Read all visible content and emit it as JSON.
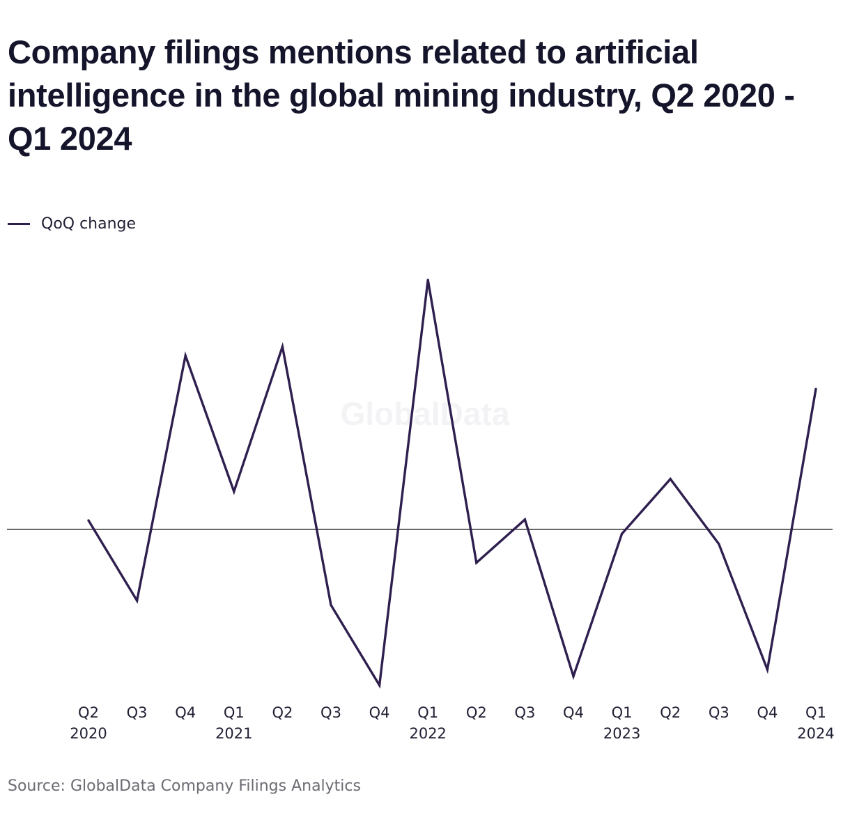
{
  "title": "Company filings mentions related to artificial intelligence in the global mining industry, Q2 2020 - Q1 2024",
  "legend": {
    "label": "QoQ change"
  },
  "watermark": "GlobalData",
  "source": "Source: GlobalData Company Filings Analytics",
  "colors": {
    "line": "#2f1f4f",
    "zero_line": "#1a1a1a",
    "watermark": "#f3f3f5",
    "source_text": "#6b6b73"
  },
  "chart_data": {
    "type": "line",
    "categories": [
      {
        "quarter": "Q2",
        "year": "2020"
      },
      {
        "quarter": "Q3",
        "year": ""
      },
      {
        "quarter": "Q4",
        "year": ""
      },
      {
        "quarter": "Q1",
        "year": "2021"
      },
      {
        "quarter": "Q2",
        "year": ""
      },
      {
        "quarter": "Q3",
        "year": ""
      },
      {
        "quarter": "Q4",
        "year": ""
      },
      {
        "quarter": "Q1",
        "year": "2022"
      },
      {
        "quarter": "Q2",
        "year": ""
      },
      {
        "quarter": "Q3",
        "year": ""
      },
      {
        "quarter": "Q4",
        "year": ""
      },
      {
        "quarter": "Q1",
        "year": "2023"
      },
      {
        "quarter": "Q2",
        "year": ""
      },
      {
        "quarter": "Q3",
        "year": ""
      },
      {
        "quarter": "Q4",
        "year": ""
      },
      {
        "quarter": "Q1",
        "year": "2024"
      }
    ],
    "series": [
      {
        "name": "QoQ change",
        "values": [
          2,
          -16,
          39,
          8.5,
          41,
          -17,
          -35,
          56,
          -7.5,
          2.2,
          -33,
          -1,
          11.3,
          -3.3,
          -31.5,
          31.5
        ]
      }
    ],
    "ylim": [
      -36,
      58
    ],
    "zero_line": true,
    "grid": false,
    "legend_position": "top-left",
    "xlabel": "",
    "ylabel": ""
  }
}
